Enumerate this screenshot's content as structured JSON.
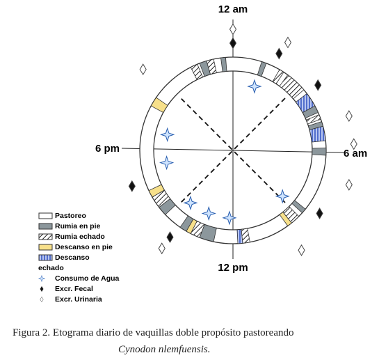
{
  "chart_data": {
    "type": "ethogram",
    "hticks": [
      {
        "value": 0,
        "label": "12 am"
      },
      {
        "value": 6,
        "label": "6 am"
      },
      {
        "value": 12,
        "label": "12 pm"
      },
      {
        "value": 18,
        "label": "6 pm"
      }
    ],
    "behaviors": [
      {
        "name": "Pastoreo",
        "fill": "#ffffff",
        "intervals": []
      },
      {
        "name": "Rumia en pie",
        "fill": "#8c979c",
        "intervals": [
          [
            22.6,
            22.9
          ],
          [
            23.5,
            23.7
          ],
          [
            1.2,
            1.4
          ],
          [
            4.1,
            4.4
          ],
          [
            4.8,
            5.0
          ],
          [
            5.9,
            6.2
          ],
          [
            8.6,
            8.8
          ],
          [
            12.8,
            13.4
          ],
          [
            14.0,
            14.3
          ],
          [
            15.1,
            15.5
          ]
        ]
      },
      {
        "name": "Rumia echado",
        "fill": "hatch",
        "intervals": [
          [
            22.2,
            22.5
          ],
          [
            22.9,
            23.2
          ],
          [
            2.0,
            2.2
          ],
          [
            2.4,
            3.3
          ],
          [
            4.5,
            4.7
          ],
          [
            9.0,
            9.4
          ],
          [
            11.3,
            11.6
          ],
          [
            13.4,
            13.8
          ],
          [
            15.5,
            16.0
          ]
        ]
      },
      {
        "name": "Descanso en pie",
        "fill": "#f7e08a",
        "intervals": [
          [
            9.4,
            9.6
          ],
          [
            13.8,
            14.0
          ],
          [
            16.0,
            16.3
          ],
          [
            19.9,
            20.3
          ]
        ]
      },
      {
        "name": "Descanso echado",
        "fill": "blue",
        "intervals": [
          [
            3.5,
            4.1
          ],
          [
            5.0,
            5.6
          ],
          [
            11.6,
            11.8
          ]
        ]
      }
    ],
    "events": [
      {
        "name": "Consumo de Agua",
        "symbol": "star",
        "hours": [
          1.24,
          8.85,
          12.2,
          13.4,
          14.6,
          17.3,
          18.9
        ]
      },
      {
        "name": "Excr. Fecal",
        "symbol": "diamond",
        "hours": [
          0,
          1.7,
          3.5,
          8.4,
          14.4,
          16.7
        ]
      },
      {
        "name": "Excr. Urinaria",
        "symbol": "open-diamond",
        "hours": [
          0,
          1.8,
          4.9,
          5.8,
          7.1,
          9.7,
          14.4,
          20.8
        ]
      }
    ],
    "caption": "Figura 2. Etograma diario de vaquillas doble propósito pastoreando",
    "caption_species": "Cynodon nlemfuensis."
  }
}
